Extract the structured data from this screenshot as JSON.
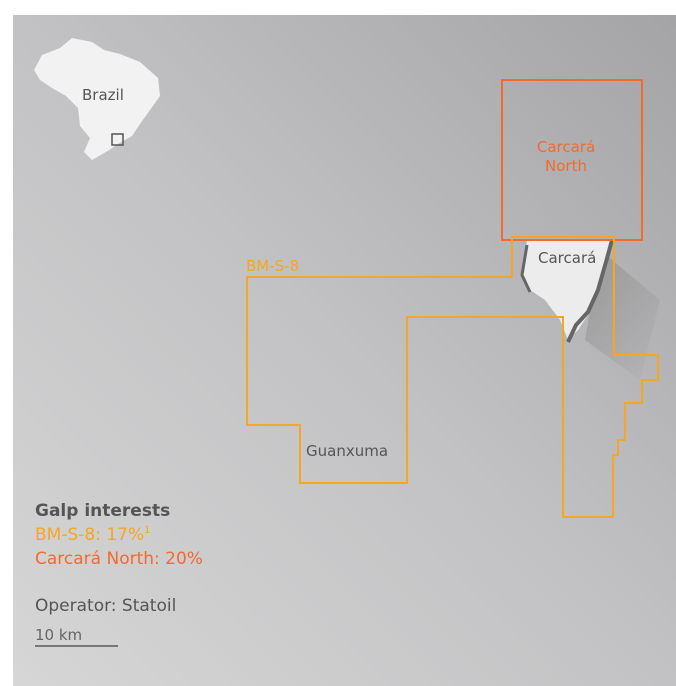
{
  "inset": {
    "label": "Brazil"
  },
  "blocks": {
    "carcara_north": {
      "label_lines": [
        "Carcará",
        "North"
      ]
    },
    "bm_s_8": {
      "label": "BM-S-8"
    },
    "carcara": {
      "label": "Carcará"
    },
    "guanxuma": {
      "label": "Guanxuma"
    }
  },
  "legend": {
    "title": "Galp interests",
    "items": [
      {
        "text": "BM-S-8: 17%",
        "note": "1"
      },
      {
        "text": "Carcará North: 20%"
      }
    ],
    "operator": "Operator: Statoil",
    "scale": "10 km"
  }
}
